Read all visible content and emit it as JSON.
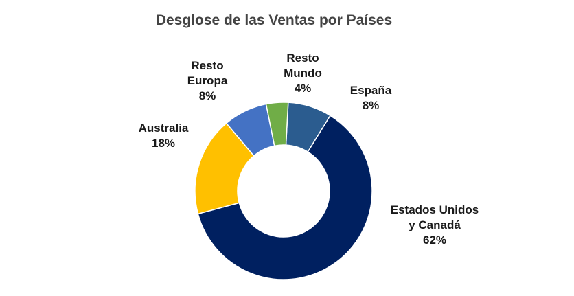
{
  "chart_data": {
    "type": "pie",
    "title": "Desglose de las Ventas por Países",
    "slices": [
      {
        "label_lines": [
          "España"
        ],
        "percent_label": "8%",
        "value": 8,
        "color": "#2b5c8f"
      },
      {
        "label_lines": [
          "Estados Unidos",
          "y Canadá"
        ],
        "percent_label": "62%",
        "value": 62,
        "color": "#002060"
      },
      {
        "label_lines": [
          "Australia"
        ],
        "percent_label": "18%",
        "value": 18,
        "color": "#ffc000"
      },
      {
        "label_lines": [
          "Resto",
          "Europa"
        ],
        "percent_label": "8%",
        "value": 8,
        "color": "#4472c4"
      },
      {
        "label_lines": [
          "Resto",
          "Mundo"
        ],
        "percent_label": "4%",
        "value": 4,
        "color": "#70ad47"
      }
    ]
  }
}
